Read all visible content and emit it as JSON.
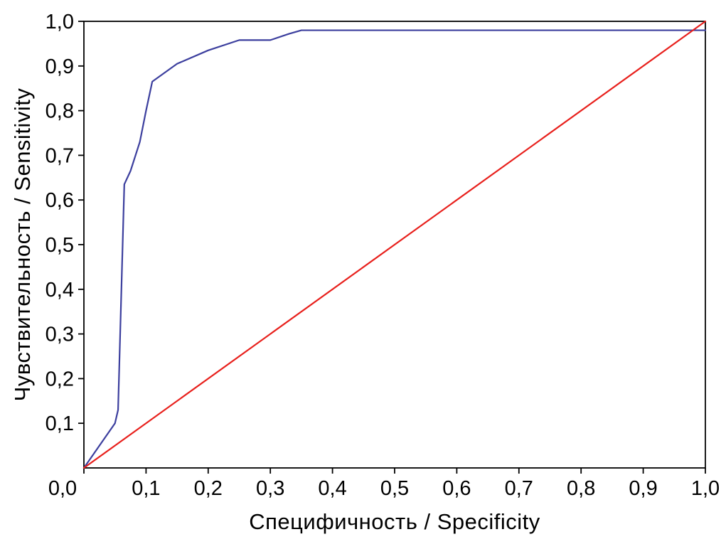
{
  "colors": {
    "background": "#ffffff",
    "frame": "#000000",
    "roc_curve": "#3c3f9e",
    "reference_line": "#e8201c",
    "tick_text": "#000000"
  },
  "chart_data": {
    "type": "line",
    "title": "",
    "xlabel": "Специфичность / Specificity",
    "ylabel": "Чувствительность / Sensitivity",
    "xlim": [
      0,
      1
    ],
    "ylim": [
      0,
      1
    ],
    "grid": false,
    "legend": "none",
    "x_ticks": [
      0,
      0.1,
      0.2,
      0.3,
      0.4,
      0.5,
      0.6,
      0.7,
      0.8,
      0.9,
      1.0
    ],
    "x_tick_labels": [
      "0,0",
      "0,1",
      "0,2",
      "0,3",
      "0,4",
      "0,5",
      "0,6",
      "0,7",
      "0,8",
      "0,9",
      "1,0"
    ],
    "y_ticks": [
      0.1,
      0.2,
      0.3,
      0.4,
      0.5,
      0.6,
      0.7,
      0.8,
      0.9,
      1.0
    ],
    "y_tick_labels": [
      "0,1",
      "0,2",
      "0,3",
      "0,4",
      "0,5",
      "0,6",
      "0,7",
      "0,8",
      "0,9",
      "1,0"
    ],
    "series": [
      {
        "id": "roc-curve-line",
        "name": "ROC curve (sensitivity vs specificity)",
        "color": "#3c3f9e",
        "width": 2.2,
        "points": [
          [
            0.0,
            0.0
          ],
          [
            0.05,
            0.1
          ],
          [
            0.055,
            0.13
          ],
          [
            0.065,
            0.635
          ],
          [
            0.075,
            0.665
          ],
          [
            0.09,
            0.73
          ],
          [
            0.1,
            0.8
          ],
          [
            0.11,
            0.865
          ],
          [
            0.15,
            0.905
          ],
          [
            0.2,
            0.935
          ],
          [
            0.25,
            0.958
          ],
          [
            0.3,
            0.958
          ],
          [
            0.33,
            0.972
          ],
          [
            0.35,
            0.98
          ],
          [
            1.0,
            0.98
          ]
        ]
      },
      {
        "id": "reference-diagonal-line",
        "name": "Reference diagonal (chance line)",
        "color": "#e8201c",
        "width": 2.2,
        "points": [
          [
            0.0,
            0.0
          ],
          [
            1.0,
            1.0
          ]
        ]
      }
    ]
  }
}
